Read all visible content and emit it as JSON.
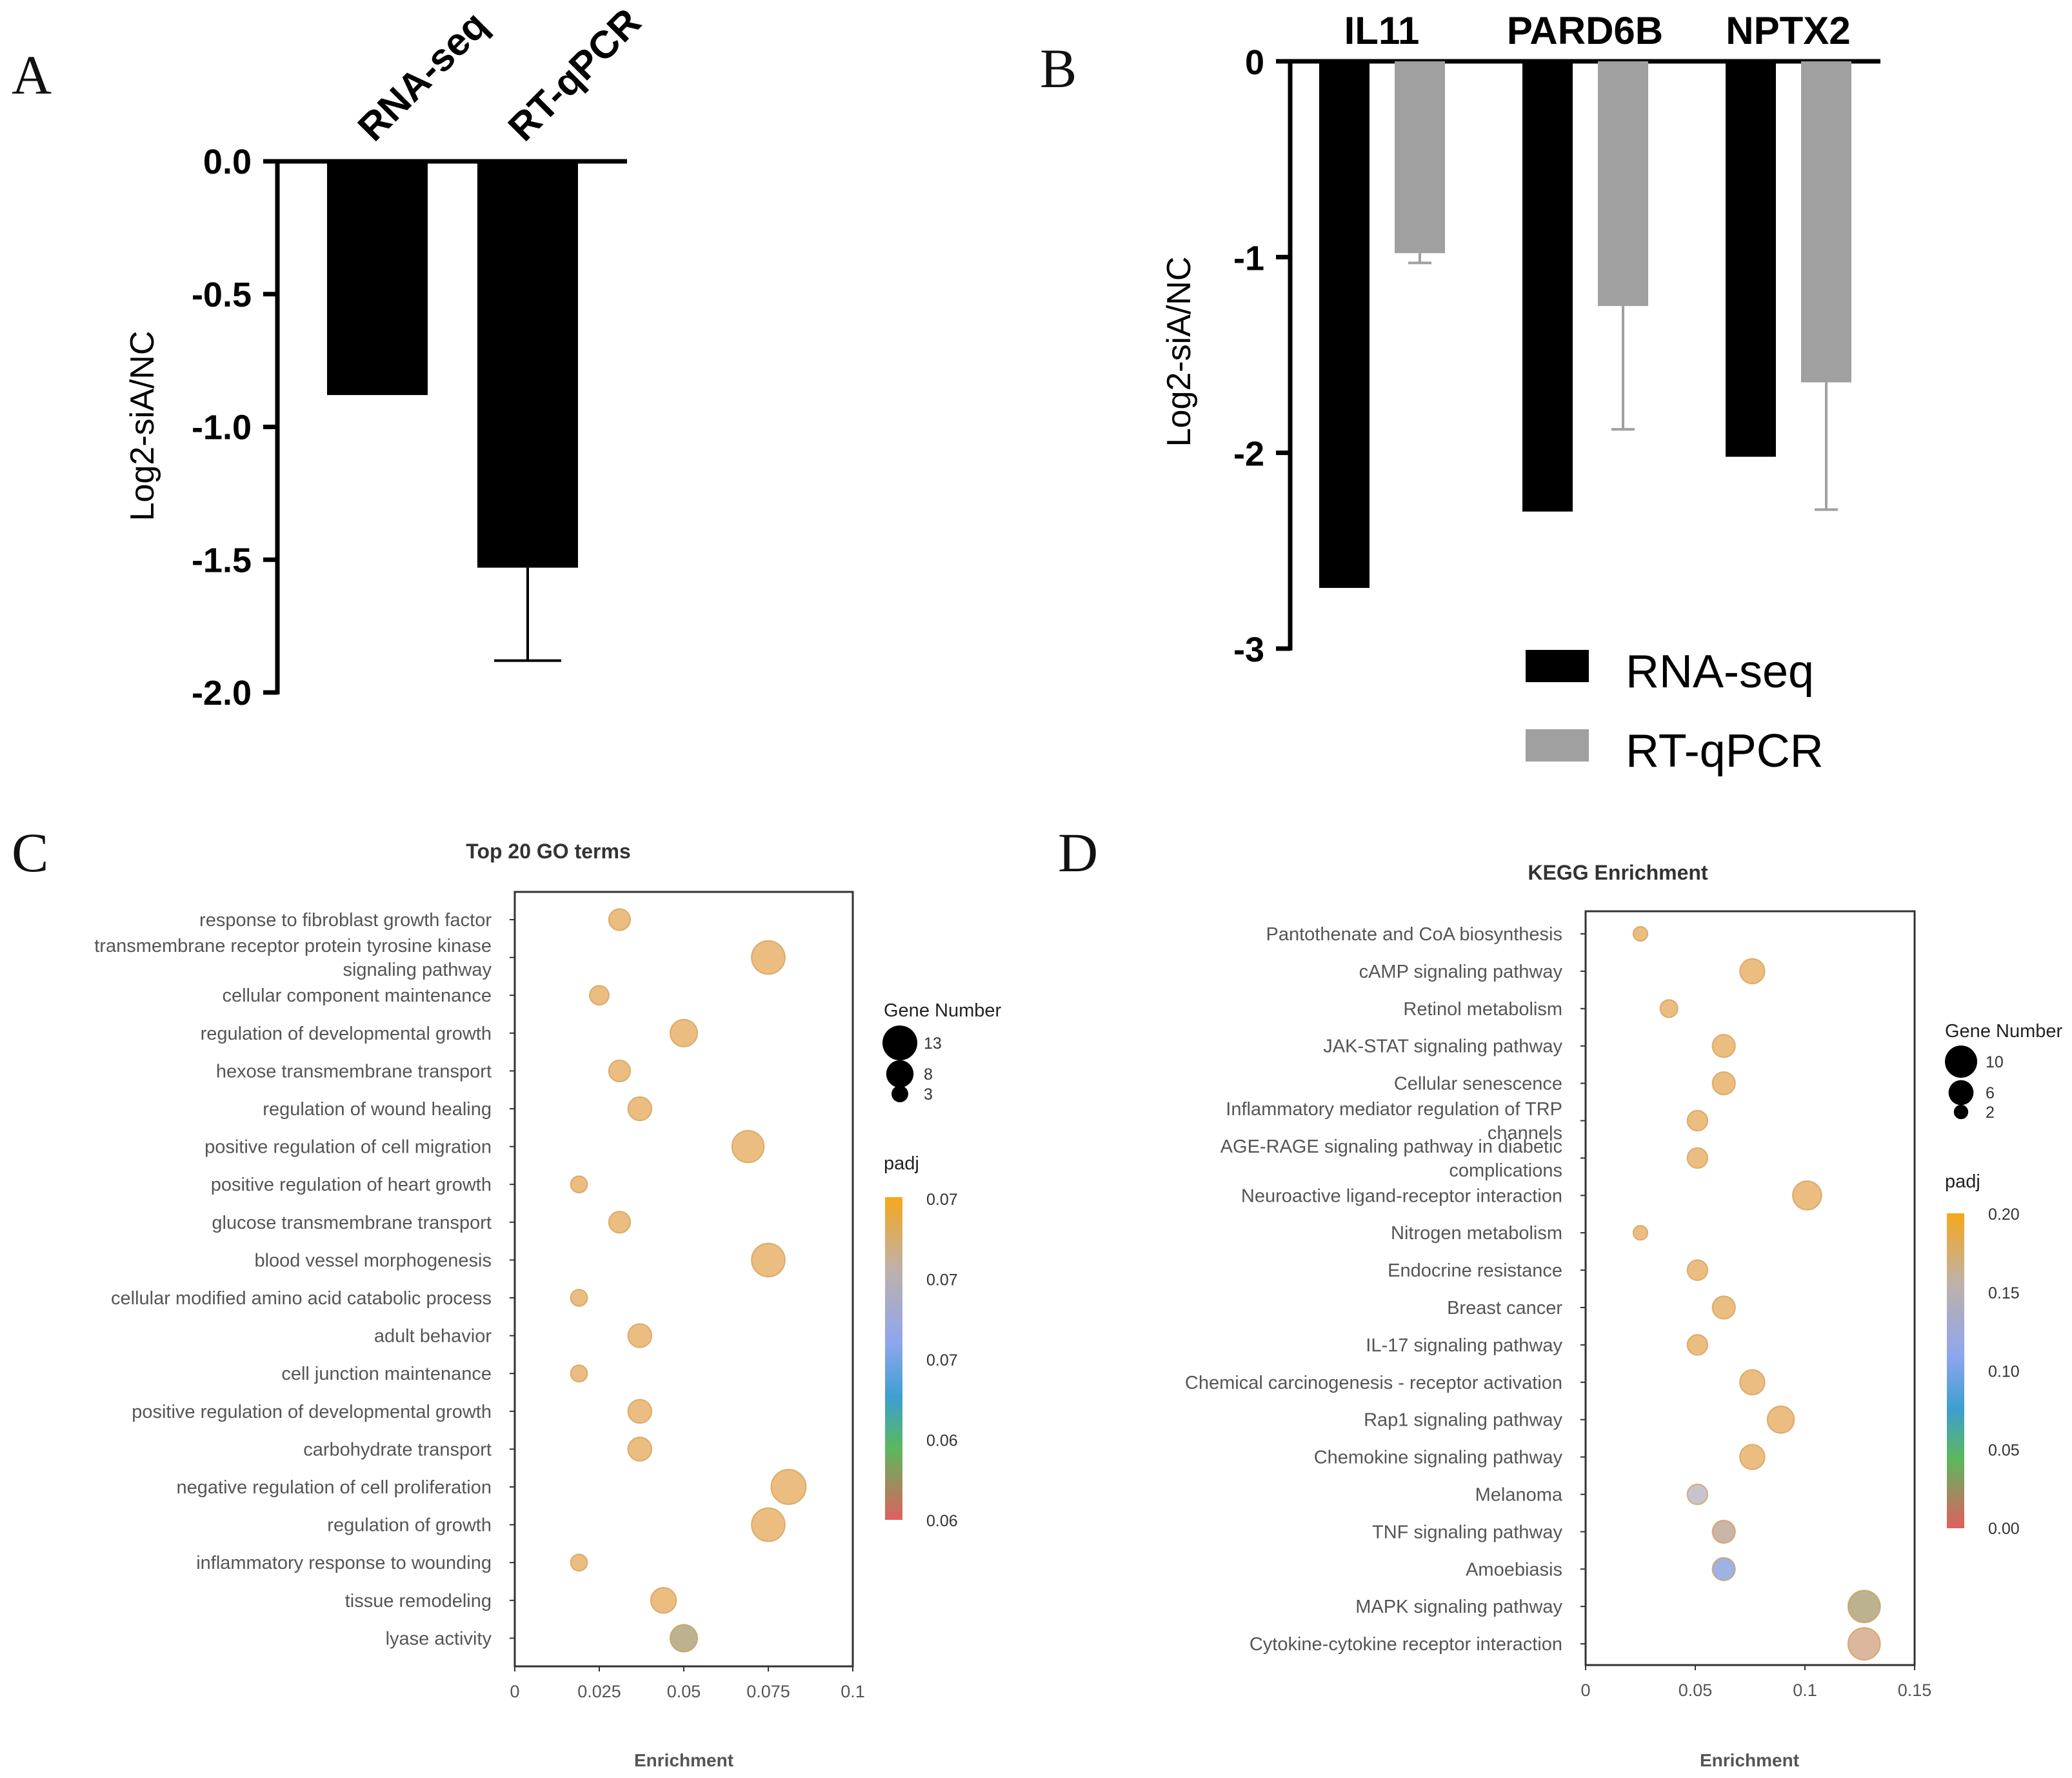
{
  "panels": {
    "a": "A",
    "b": "B",
    "c": "C",
    "d": "D"
  },
  "colors": {
    "rna_seq": "#000000",
    "rt_qpcr": "#a0a0a0",
    "bubble_main": "#e9b26b",
    "bubble_olive": "#b1a47c",
    "bubble_taupe": "#c0a898",
    "bubble_grey": "#bfb8c6",
    "bubble_blue": "#8ea6de",
    "bubble_salmon": "#d7a98d",
    "colorbar_stops": [
      "#f5a81c",
      "#bfb1a8",
      "#8fa6ee",
      "#3d9fd0",
      "#5cb85c",
      "#e06060"
    ]
  },
  "chart_data": [
    {
      "id": "A",
      "type": "bar",
      "title": "",
      "categories": [
        "RNA-seq",
        "RT-qPCR"
      ],
      "values": [
        -0.88,
        -1.53
      ],
      "errors": [
        0,
        0.35
      ],
      "xlabel": "",
      "ylabel": "Log2-siA/NC",
      "ylim": [
        -2.0,
        0.0
      ],
      "yticks": [
        "0.0",
        "-0.5",
        "-1.0",
        "-1.5",
        "-2.0"
      ],
      "ytick_values": [
        0,
        -0.5,
        -1.0,
        -1.5,
        -2.0
      ],
      "grid": false
    },
    {
      "id": "B",
      "type": "bar",
      "title": "",
      "categories": [
        "IL11",
        "PARD6B",
        "NPTX2"
      ],
      "series": [
        {
          "name": "RNA-seq",
          "values": [
            -2.69,
            -2.3,
            -2.02
          ],
          "errors": [
            0,
            0,
            0
          ]
        },
        {
          "name": "RT-qPCR",
          "values": [
            -0.98,
            -1.25,
            -1.64
          ],
          "errors": [
            0.05,
            0.63,
            0.65
          ]
        }
      ],
      "xlabel": "",
      "ylabel": "Log2-siA/NC",
      "ylim": [
        -3,
        0
      ],
      "yticks": [
        "0",
        "-1",
        "-2",
        "-3"
      ],
      "ytick_values": [
        0,
        -1,
        -2,
        -3
      ],
      "legend": [
        "RNA-seq",
        "RT-qPCR"
      ],
      "legend_position": "bottom-right",
      "grid": false
    },
    {
      "id": "C",
      "type": "scatter",
      "title": "Top 20 GO terms",
      "xlabel": "Enrichment",
      "ylabel": "",
      "xlim": [
        0,
        0.1
      ],
      "xticks": [
        "0",
        "0.025",
        "0.05",
        "0.075",
        "0.1"
      ],
      "xtick_values": [
        0,
        0.025,
        0.05,
        0.075,
        0.1
      ],
      "terms": [
        "response to fibroblast growth factor",
        "transmembrane receptor protein tyrosine kinase\nsignaling pathway",
        "cellular component maintenance",
        "regulation of developmental growth",
        "hexose transmembrane transport",
        "regulation of wound healing",
        "positive regulation of cell migration",
        "positive regulation of heart growth",
        "glucose transmembrane transport",
        "blood vessel morphogenesis",
        "cellular modified amino acid catabolic process",
        "adult behavior",
        "cell junction maintenance",
        "positive regulation of developmental growth",
        "carbohydrate transport",
        "negative regulation of cell proliferation",
        "regulation of growth",
        "inflammatory response to wounding",
        "tissue remodeling",
        "lyase activity"
      ],
      "enrichment": [
        0.031,
        0.075,
        0.025,
        0.05,
        0.031,
        0.037,
        0.069,
        0.019,
        0.031,
        0.075,
        0.019,
        0.037,
        0.019,
        0.037,
        0.037,
        0.081,
        0.075,
        0.019,
        0.044,
        0.05
      ],
      "gene_number": [
        5,
        12,
        4,
        8,
        5,
        6,
        11,
        3,
        5,
        12,
        3,
        6,
        3,
        6,
        6,
        13,
        12,
        3,
        7,
        8
      ],
      "colors": [
        "bubble_main",
        "bubble_main",
        "bubble_main",
        "bubble_main",
        "bubble_main",
        "bubble_main",
        "bubble_main",
        "bubble_main",
        "bubble_main",
        "bubble_main",
        "bubble_main",
        "bubble_main",
        "bubble_main",
        "bubble_main",
        "bubble_main",
        "bubble_main",
        "bubble_main",
        "bubble_main",
        "bubble_main",
        "bubble_olive"
      ],
      "size_legend": {
        "title": "Gene Number",
        "values": [
          13,
          8,
          3
        ],
        "labels": [
          "13",
          "8",
          "3"
        ]
      },
      "color_legend": {
        "title": "padj",
        "labels": [
          "0.07",
          "0.07",
          "0.07",
          "0.06",
          "0.06"
        ]
      }
    },
    {
      "id": "D",
      "type": "scatter",
      "title": "KEGG Enrichment",
      "xlabel": "Enrichment",
      "ylabel": "",
      "xlim": [
        0,
        0.15
      ],
      "xticks": [
        "0",
        "0.05",
        "0.1",
        "0.15"
      ],
      "xtick_values": [
        0,
        0.05,
        0.1,
        0.15
      ],
      "terms": [
        "Pantothenate and CoA biosynthesis",
        "cAMP signaling pathway",
        "Retinol metabolism",
        "JAK-STAT signaling pathway",
        "Cellular senescence",
        "Inflammatory mediator regulation of TRP\nchannels",
        "AGE-RAGE signaling pathway in diabetic\ncomplications",
        "Neuroactive ligand-receptor interaction",
        "Nitrogen metabolism",
        "Endocrine resistance",
        "Breast cancer",
        "IL-17 signaling pathway",
        "Chemical carcinogenesis - receptor activation",
        "Rap1 signaling pathway",
        "Chemokine signaling pathway",
        "Melanoma",
        "TNF signaling pathway",
        "Amoebiasis",
        "MAPK signaling pathway",
        "Cytokine-cytokine receptor interaction"
      ],
      "enrichment": [
        0.025,
        0.076,
        0.038,
        0.063,
        0.063,
        0.051,
        0.051,
        0.101,
        0.025,
        0.051,
        0.063,
        0.051,
        0.076,
        0.089,
        0.076,
        0.051,
        0.063,
        0.063,
        0.127,
        0.127
      ],
      "gene_number": [
        2,
        6,
        3,
        5,
        5,
        4,
        4,
        8,
        2,
        4,
        5,
        4,
        6,
        7,
        6,
        4,
        5,
        5,
        10,
        10
      ],
      "colors": [
        "bubble_main",
        "bubble_main",
        "bubble_main",
        "bubble_main",
        "bubble_main",
        "bubble_main",
        "bubble_main",
        "bubble_main",
        "bubble_main",
        "bubble_main",
        "bubble_main",
        "bubble_main",
        "bubble_main",
        "bubble_main",
        "bubble_main",
        "bubble_grey",
        "bubble_taupe",
        "bubble_blue",
        "bubble_olive",
        "bubble_salmon"
      ],
      "size_legend": {
        "title": "Gene Number",
        "values": [
          10,
          6,
          2
        ],
        "labels": [
          "10",
          "6",
          "2"
        ]
      },
      "color_legend": {
        "title": "padj",
        "labels": [
          "0.20",
          "0.15",
          "0.10",
          "0.05",
          "0.00"
        ]
      }
    }
  ]
}
